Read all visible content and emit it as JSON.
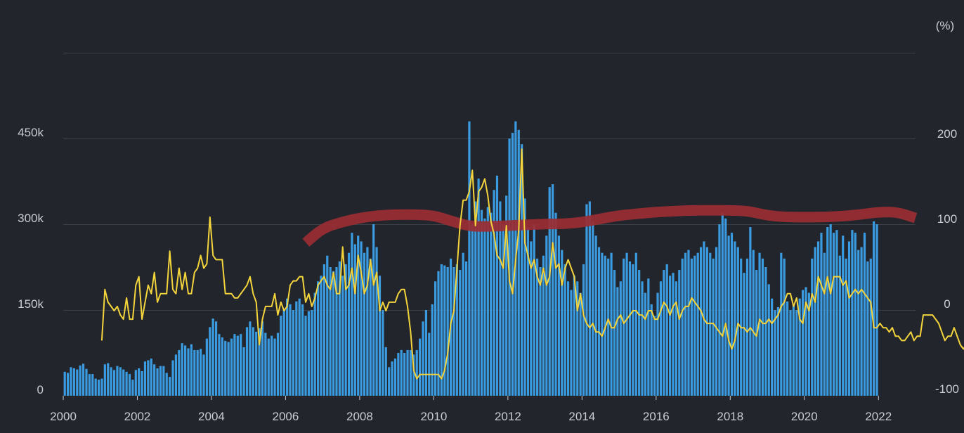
{
  "chart_data": {
    "type": "bar",
    "title": "",
    "xlabel": "",
    "ylabel": "",
    "y2label": "(%)",
    "grid": true,
    "x_ticks": [
      "2000",
      "2002",
      "2004",
      "2006",
      "2008",
      "2010",
      "2012",
      "2014",
      "2016",
      "2018",
      "2020",
      "2022"
    ],
    "y_ticks": [
      "0",
      "150k",
      "300k",
      "450k"
    ],
    "y2_ticks": [
      "-100",
      "0",
      "100",
      "200"
    ],
    "ylim": [
      0,
      600000
    ],
    "y2lim": [
      -100,
      300
    ],
    "xlim": [
      2000,
      2023
    ],
    "colors": {
      "bars": "#3b9be0",
      "line": "#f4d43c",
      "highlight": "#9b2d34",
      "grid": "#3d4047",
      "background": "#22252b"
    },
    "series": [
      {
        "type": "bar",
        "axis": "left",
        "x_start": "2000-01",
        "interval": "month",
        "values": [
          42000,
          40000,
          50000,
          48000,
          46000,
          53000,
          56000,
          47000,
          38000,
          38000,
          30000,
          28000,
          30000,
          55000,
          57000,
          50000,
          45000,
          52000,
          50000,
          46000,
          42000,
          38000,
          28000,
          45000,
          48000,
          43000,
          60000,
          62000,
          65000,
          55000,
          48000,
          52000,
          52000,
          40000,
          33000,
          62000,
          72000,
          80000,
          92000,
          88000,
          83000,
          90000,
          80000,
          80000,
          82000,
          72000,
          100000,
          120000,
          135000,
          130000,
          108000,
          102000,
          96000,
          94000,
          100000,
          108000,
          105000,
          108000,
          85000,
          120000,
          130000,
          120000,
          112000,
          118000,
          130000,
          110000,
          100000,
          105000,
          100000,
          110000,
          140000,
          150000,
          170000,
          160000,
          150000,
          165000,
          170000,
          160000,
          140000,
          148000,
          150000,
          180000,
          200000,
          210000,
          230000,
          245000,
          225000,
          218000,
          225000,
          235000,
          210000,
          230000,
          250000,
          285000,
          265000,
          280000,
          270000,
          250000,
          260000,
          240000,
          300000,
          260000,
          210000,
          150000,
          85000,
          50000,
          60000,
          65000,
          75000,
          80000,
          75000,
          80000,
          80000,
          72000,
          80000,
          100000,
          130000,
          150000,
          110000,
          160000,
          200000,
          218000,
          230000,
          228000,
          225000,
          240000,
          225000,
          230000,
          220000,
          250000,
          235000,
          480000,
          300000,
          340000,
          380000,
          325000,
          310000,
          330000,
          320000,
          360000,
          385000,
          340000,
          300000,
          350000,
          450000,
          460000,
          480000,
          465000,
          440000,
          345000,
          295000,
          270000,
          300000,
          240000,
          225000,
          245000,
          280000,
          365000,
          370000,
          320000,
          280000,
          255000,
          230000,
          200000,
          185000,
          210000,
          200000,
          180000,
          230000,
          335000,
          340000,
          305000,
          280000,
          260000,
          250000,
          245000,
          240000,
          250000,
          220000,
          190000,
          200000,
          240000,
          250000,
          235000,
          230000,
          250000,
          220000,
          200000,
          180000,
          205000,
          160000,
          140000,
          180000,
          200000,
          220000,
          230000,
          210000,
          215000,
          200000,
          220000,
          240000,
          250000,
          255000,
          240000,
          245000,
          250000,
          260000,
          270000,
          260000,
          250000,
          240000,
          260000,
          300000,
          320000,
          310000,
          280000,
          285000,
          270000,
          260000,
          240000,
          215000,
          240000,
          295000,
          255000,
          220000,
          250000,
          240000,
          225000,
          195000,
          170000,
          150000,
          155000,
          250000,
          240000,
          165000,
          150000,
          160000,
          150000,
          170000,
          185000,
          190000,
          180000,
          240000,
          260000,
          270000,
          285000,
          250000,
          295000,
          300000,
          285000,
          290000,
          245000,
          280000,
          240000,
          270000,
          290000,
          285000,
          255000,
          260000,
          285000,
          235000,
          240000,
          305000,
          300000
        ]
      },
      {
        "type": "line",
        "axis": "right",
        "x_start": "2001-01",
        "interval": "month",
        "values": [
          -35,
          25,
          10,
          5,
          0,
          5,
          -5,
          -10,
          15,
          -10,
          -10,
          30,
          40,
          -10,
          10,
          30,
          20,
          45,
          10,
          20,
          20,
          20,
          70,
          25,
          20,
          50,
          25,
          45,
          20,
          20,
          45,
          50,
          65,
          50,
          55,
          110,
          65,
          60,
          60,
          60,
          20,
          20,
          20,
          15,
          15,
          20,
          25,
          30,
          40,
          20,
          10,
          -40,
          -10,
          5,
          5,
          5,
          20,
          -5,
          10,
          0,
          5,
          30,
          35,
          35,
          40,
          40,
          10,
          20,
          5,
          15,
          30,
          35,
          40,
          30,
          25,
          45,
          20,
          20,
          75,
          25,
          30,
          50,
          20,
          65,
          45,
          20,
          30,
          60,
          30,
          45,
          0,
          10,
          0,
          10,
          10,
          10,
          20,
          25,
          25,
          5,
          -25,
          -70,
          -80,
          -75,
          -75,
          -75,
          -75,
          -75,
          -75,
          -75,
          -80,
          -70,
          -50,
          -15,
          0,
          50,
          100,
          130,
          130,
          140,
          165,
          100,
          140,
          145,
          155,
          135,
          105,
          90,
          65,
          60,
          50,
          100,
          35,
          20,
          60,
          95,
          190,
          80,
          65,
          50,
          60,
          40,
          30,
          50,
          30,
          40,
          80,
          50,
          55,
          30,
          50,
          60,
          50,
          40,
          0,
          20,
          -5,
          -15,
          -20,
          -15,
          -25,
          -25,
          -30,
          -20,
          -10,
          -20,
          -20,
          -10,
          -5,
          -15,
          -10,
          -5,
          0,
          0,
          -5,
          -5,
          -10,
          0,
          0,
          -10,
          -10,
          0,
          10,
          5,
          -5,
          5,
          10,
          -10,
          0,
          5,
          5,
          15,
          10,
          5,
          0,
          -10,
          -15,
          -15,
          -15,
          -20,
          -25,
          -30,
          -15,
          -35,
          -45,
          -35,
          -15,
          -20,
          -20,
          -25,
          -20,
          -25,
          -30,
          -10,
          -15,
          -15,
          -10,
          -15,
          -10,
          -5,
          5,
          10,
          20,
          20,
          5,
          15,
          -10,
          -15,
          10,
          0,
          20,
          10,
          40,
          30,
          20,
          40,
          20,
          40,
          40,
          40,
          30,
          35,
          15,
          20,
          25,
          20,
          25,
          20,
          15,
          10,
          -20,
          -20,
          -15,
          -20,
          -20,
          -25,
          -20,
          -30,
          -30,
          -35,
          -35,
          -30,
          -25,
          -35,
          -30,
          -30,
          -5,
          -5,
          -5,
          -5,
          -10,
          -15,
          -25,
          -35,
          -30,
          -30,
          -20,
          -30,
          -40,
          -45,
          -40,
          -30,
          -10,
          -15,
          -25,
          -15,
          10,
          0,
          20,
          20,
          15,
          5,
          -10,
          10,
          30,
          20,
          25,
          20,
          110,
          90,
          -30,
          -20,
          -15,
          -5,
          -5,
          -10,
          -15,
          -5,
          -10,
          0,
          5,
          10,
          5,
          -15,
          -15,
          20,
          40,
          30,
          10,
          20,
          20,
          15,
          10,
          5,
          10,
          -10,
          -5,
          0,
          0,
          5,
          0,
          10,
          5,
          5,
          0,
          -5,
          10,
          5,
          15,
          10,
          0,
          -10,
          -15,
          -10
        ]
      },
      {
        "type": "line",
        "axis": "right",
        "role": "annotation",
        "x": [
          2006.55,
          2007.0,
          2007.5,
          2008.0,
          2008.5,
          2009.0,
          2009.5,
          2010.0,
          2010.5,
          2011.0,
          2011.5,
          2012.0,
          2012.5,
          2013.0,
          2013.5,
          2014.0,
          2014.5,
          2015.0,
          2015.5,
          2016.0,
          2016.5,
          2017.0,
          2017.5,
          2018.0,
          2018.5,
          2019.0,
          2019.5,
          2020.0,
          2020.5,
          2021.0,
          2021.5,
          2022.0,
          2022.5,
          2023.0
        ],
        "values": [
          80,
          97,
          104,
          109,
          112,
          113,
          113,
          112,
          105,
          99,
          99,
          100,
          101,
          102,
          102,
          104,
          108,
          112,
          114,
          116,
          117,
          118,
          118,
          118,
          117,
          112,
          110,
          110,
          110,
          111,
          113,
          116,
          116,
          109
        ]
      }
    ]
  }
}
